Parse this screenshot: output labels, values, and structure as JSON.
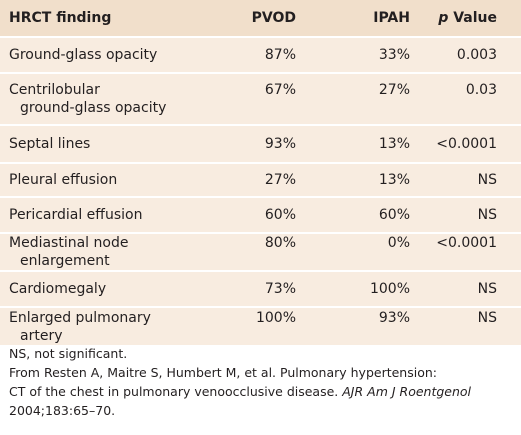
{
  "table": {
    "header": [
      "HRCT finding",
      "PVOD",
      "IPAH",
      {
        "italic": "p",
        "text": "Value"
      }
    ],
    "rows": [
      [
        [
          "Ground-glass opacity"
        ],
        "87%",
        "33%",
        "0.003"
      ],
      [
        [
          "Centrilobular",
          "ground-glass opacity"
        ],
        "67%",
        "27%",
        "0.03"
      ],
      [
        [
          "Septal lines"
        ],
        "93%",
        "13%",
        "<0.0001"
      ],
      [
        [
          "Pleural effusion"
        ],
        "27%",
        "13%",
        "NS"
      ],
      [
        [
          "Pericardial effusion"
        ],
        "60%",
        "60%",
        "NS"
      ],
      [
        [
          "Mediastinal node",
          "enlargement"
        ],
        "80%",
        "0%",
        "<0.0001"
      ],
      [
        [
          "Cardiomegaly"
        ],
        "73%",
        "100%",
        "NS"
      ],
      [
        [
          "Enlarged pulmonary",
          "artery"
        ],
        "100%",
        "93%",
        "NS"
      ]
    ]
  },
  "footnote": {
    "note": "NS, not significant.",
    "source": [
      "From Resten A, Maitre S, Humbert M, et al. Pulmonary hypertension:",
      "CT of the chest in pulmonary venoocclusive disease. ",
      "AJR Am J Roentgenol",
      "2004;183:65–70."
    ]
  }
}
